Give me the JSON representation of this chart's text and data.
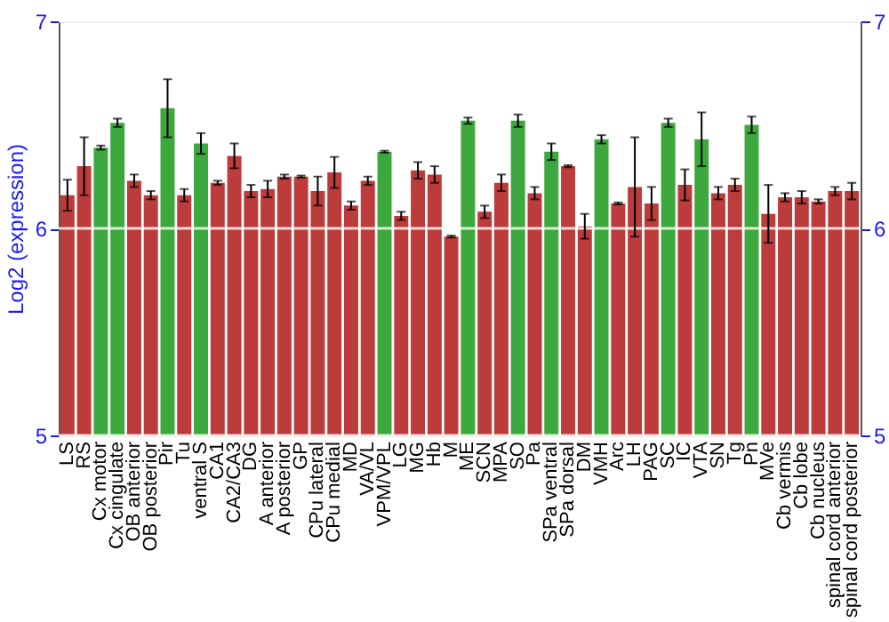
{
  "chart_data": {
    "type": "bar",
    "ylabel": "Log2 (expression)",
    "categories": [
      "LS",
      "RS",
      "Cx motor",
      "Cx cingulate",
      "OB anterior",
      "OB posterior",
      "Pir",
      "Tu",
      "ventral S",
      "CA1",
      "CA2/CA3",
      "DG",
      "A anterior",
      "A posterior",
      "GP",
      "CPu lateral",
      "CPu medial",
      "MD",
      "VA/VL",
      "VPM/VPL",
      "LG",
      "MG",
      "Hb",
      "M",
      "ME",
      "SCN",
      "MPA",
      "SO",
      "Pa",
      "SPa ventral",
      "SPa dorsal",
      "DM",
      "VMH",
      "Arc",
      "LH",
      "PAG",
      "SC",
      "IC",
      "VTA",
      "SN",
      "Tg",
      "Pn",
      "MVe",
      "Cb vermis",
      "Cb lobe",
      "Cb nucleus",
      "spinal cord anterior",
      "spinal cord posterior"
    ],
    "values": [
      6.16,
      6.3,
      6.39,
      6.51,
      6.23,
      6.16,
      6.58,
      6.16,
      6.41,
      6.22,
      6.35,
      6.18,
      6.19,
      6.25,
      6.25,
      6.18,
      6.27,
      6.11,
      6.23,
      6.37,
      6.06,
      6.28,
      6.26,
      5.96,
      6.52,
      6.08,
      6.22,
      6.52,
      6.17,
      6.37,
      6.3,
      6.01,
      6.43,
      6.12,
      6.2,
      6.12,
      6.51,
      6.21,
      6.43,
      6.17,
      6.21,
      6.5,
      6.07,
      6.15,
      6.15,
      6.13,
      6.18,
      6.18
    ],
    "errors": [
      0.075,
      0.14,
      0.01,
      0.02,
      0.03,
      0.02,
      0.14,
      0.03,
      0.05,
      0.01,
      0.06,
      0.03,
      0.04,
      0.01,
      0.005,
      0.07,
      0.075,
      0.02,
      0.02,
      0.005,
      0.02,
      0.04,
      0.04,
      0.005,
      0.015,
      0.03,
      0.04,
      0.03,
      0.03,
      0.04,
      0.005,
      0.06,
      0.02,
      0.005,
      0.24,
      0.08,
      0.02,
      0.075,
      0.13,
      0.03,
      0.03,
      0.04,
      0.14,
      0.02,
      0.03,
      0.01,
      0.02,
      0.04
    ],
    "colors": [
      "#b83232",
      "#b83232",
      "#33a333",
      "#33a333",
      "#b83232",
      "#b83232",
      "#33a333",
      "#b83232",
      "#33a333",
      "#b83232",
      "#b83232",
      "#b83232",
      "#b83232",
      "#b83232",
      "#b83232",
      "#b83232",
      "#b83232",
      "#b83232",
      "#b83232",
      "#33a333",
      "#b83232",
      "#b83232",
      "#b83232",
      "#b83232",
      "#33a333",
      "#b83232",
      "#b83232",
      "#33a333",
      "#b83232",
      "#33a333",
      "#b83232",
      "#b83232",
      "#33a333",
      "#b83232",
      "#b83232",
      "#b83232",
      "#33a333",
      "#b83232",
      "#33a333",
      "#b83232",
      "#b83232",
      "#33a333",
      "#b83232",
      "#b83232",
      "#b83232",
      "#b83232",
      "#b83232",
      "#b83232"
    ],
    "ylim": [
      5,
      7
    ],
    "yticks": [
      5,
      6,
      7
    ],
    "y2lim": [
      5,
      7
    ],
    "y2ticks": [
      5,
      6,
      7
    ],
    "grid": "y"
  }
}
